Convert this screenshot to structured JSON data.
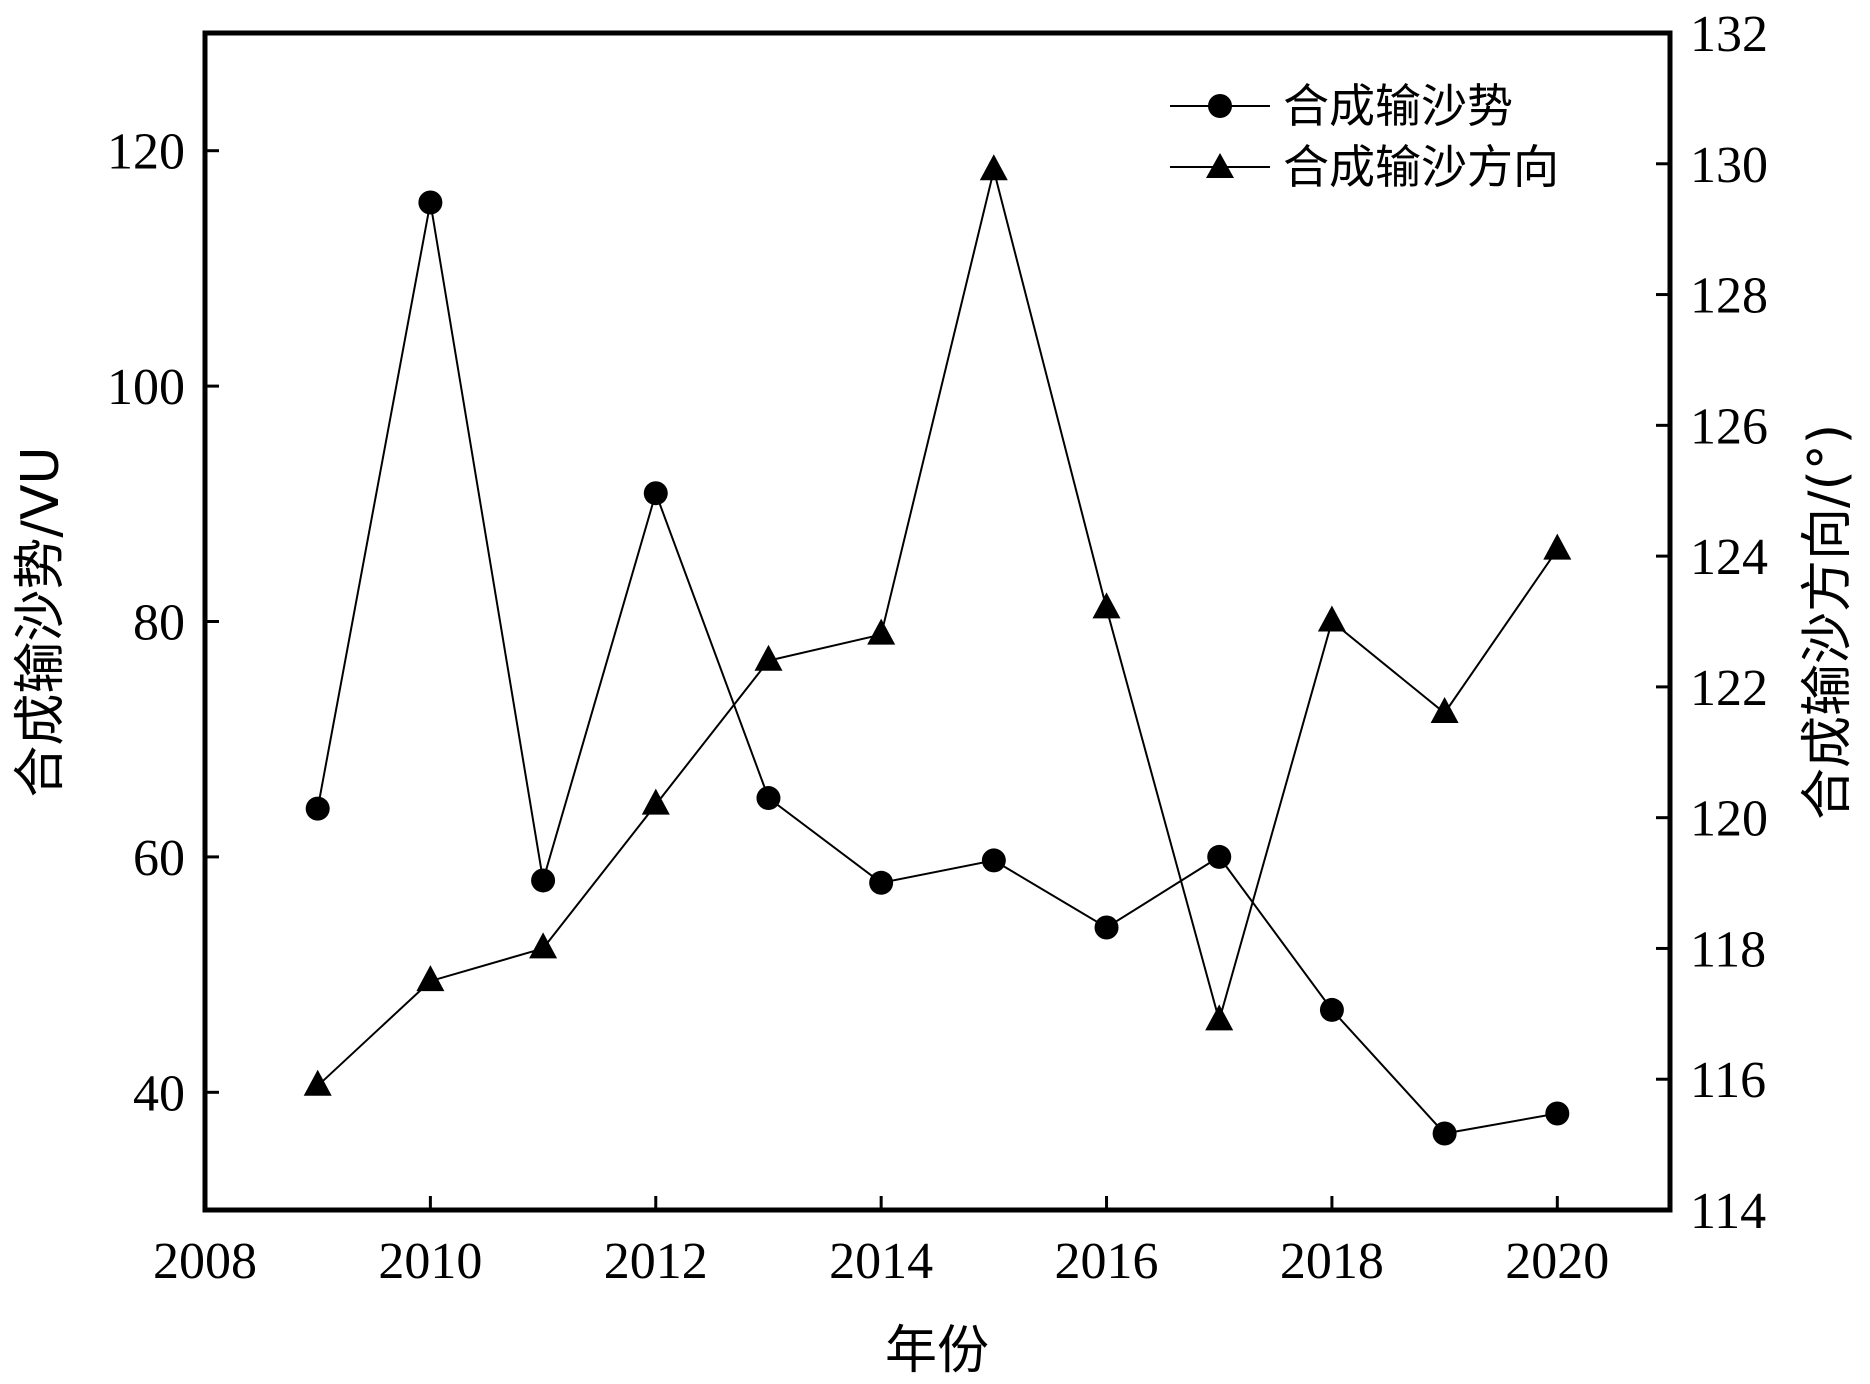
{
  "chart_data": {
    "type": "line",
    "x": [
      2009,
      2010,
      2011,
      2012,
      2013,
      2014,
      2015,
      2016,
      2017,
      2018,
      2019,
      2020
    ],
    "series": [
      {
        "name": "合成输沙势",
        "axis": "left",
        "marker": "circle",
        "values": [
          64.1,
          115.6,
          58.0,
          90.9,
          65.0,
          57.8,
          59.7,
          54.0,
          60.0,
          47.0,
          36.5,
          38.2
        ]
      },
      {
        "name": "合成输沙方向",
        "axis": "right",
        "marker": "triangle",
        "values": [
          115.9,
          117.5,
          118.0,
          120.2,
          122.4,
          122.8,
          129.9,
          123.2,
          116.9,
          123.0,
          121.6,
          124.1
        ]
      }
    ],
    "xlabel": "年份",
    "ylabel_left": "合成输沙势/VU",
    "ylabel_right": "合成输沙方向/(°)",
    "xlim": [
      2008,
      2021
    ],
    "ylim_left": [
      30,
      130
    ],
    "ylim_right": [
      114,
      132
    ],
    "xticks": [
      2008,
      2010,
      2012,
      2014,
      2016,
      2018,
      2020
    ],
    "yticks_left": [
      40,
      60,
      80,
      100,
      120
    ],
    "yticks_right": [
      114,
      116,
      118,
      120,
      122,
      124,
      126,
      128,
      130,
      132
    ],
    "grid": false,
    "legend_position": "top-right",
    "line_color": "#000000"
  }
}
